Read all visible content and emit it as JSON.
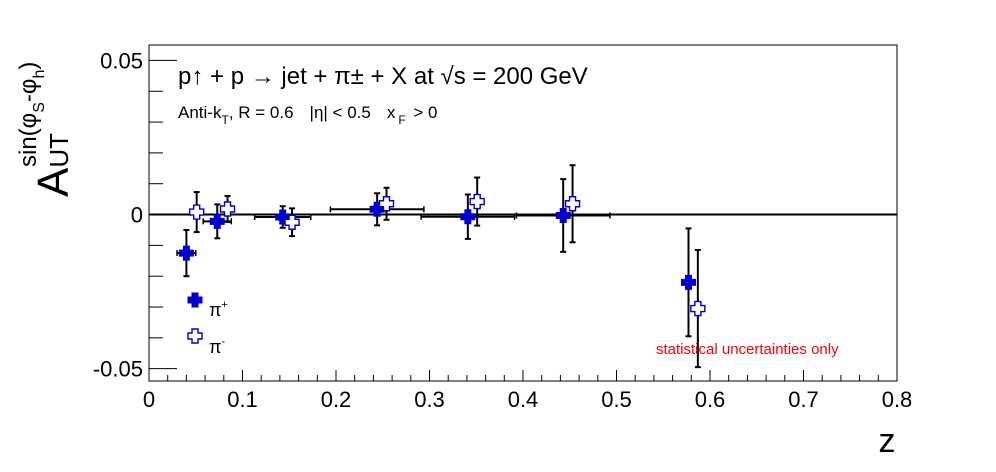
{
  "chart_data": {
    "type": "scatter",
    "title": "p↑ + p → jet + π± + X at √s = 200 GeV",
    "subtitle_parts": {
      "algo": "Anti-k",
      "algo_sub": "T",
      "radius": ", R = 0.6",
      "eta_cut": "|η| < 0.5",
      "xf_label": "x",
      "xf_sub": "F",
      "xf_cut": " > 0"
    },
    "ylabel": {
      "main": "A",
      "sub": "UT",
      "sup": "sin(φ",
      "sup_s": "S",
      "sup_mid": "-φ",
      "sup_h": "h",
      "sup_end": ")"
    },
    "xlabel": "z",
    "xlim": [
      0,
      0.8
    ],
    "ylim": [
      -0.054,
      0.055
    ],
    "x_ticks": [
      "0",
      "0.1",
      "0.2",
      "0.3",
      "0.4",
      "0.5",
      "0.6",
      "0.7",
      "0.8"
    ],
    "y_ticks": [
      "0.05",
      "0",
      "-0.05"
    ],
    "annotation": "statistical uncertainties only",
    "annotation_color": "#ff0000",
    "legend_position": "bottom-left",
    "series": [
      {
        "name": "π+",
        "label_main": "π",
        "label_sup": "+",
        "marker": "filled-cross",
        "color": "#0000cc",
        "x": [
          0.04,
          0.073,
          0.143,
          0.244,
          0.341,
          0.443,
          0.577
        ],
        "y": [
          -0.0125,
          -0.0022,
          -0.0008,
          0.0017,
          -0.0007,
          -0.0003,
          -0.022
        ],
        "yerr": [
          0.0075,
          0.0055,
          0.0035,
          0.0052,
          0.0072,
          0.0118,
          0.0175
        ],
        "xerr": [
          0.01,
          0.015,
          0.03,
          0.05,
          0.05,
          0.05,
          0.0
        ]
      },
      {
        "name": "π-",
        "label_main": "π",
        "label_sup": "-",
        "marker": "open-cross",
        "color": "#0000cc",
        "x": [
          0.051,
          0.084,
          0.153,
          0.254,
          0.351,
          0.453,
          0.587
        ],
        "y": [
          0.0008,
          0.0018,
          -0.0025,
          0.0035,
          0.0042,
          0.0035,
          -0.0305
        ],
        "yerr": [
          0.0065,
          0.0042,
          0.0045,
          0.0052,
          0.0078,
          0.0125,
          0.019
        ],
        "xerr": [
          0.0,
          0.0,
          0.0,
          0.0,
          0.0,
          0.0,
          0.0
        ]
      }
    ],
    "zero_line": true,
    "grid": false
  }
}
